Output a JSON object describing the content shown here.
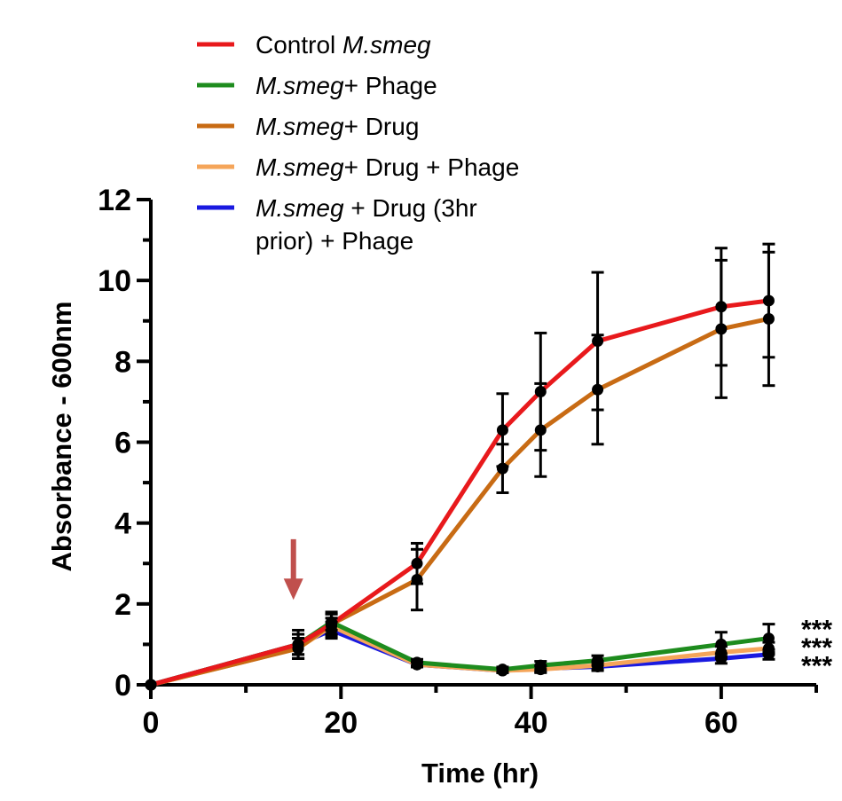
{
  "chart_data": {
    "type": "line",
    "xlabel": "Time (hr)",
    "ylabel": "Absorbance - 600nm",
    "xlim": [
      0,
      70
    ],
    "ylim": [
      0,
      12
    ],
    "x_ticks": [
      "0",
      "20",
      "40",
      "60"
    ],
    "y_ticks": [
      "0",
      "2",
      "4",
      "6",
      "8",
      "10",
      "12"
    ],
    "legend_placement": "top-left",
    "grid": false,
    "series": [
      {
        "name": "Control M.smeg",
        "legend_parts": [
          {
            "text": "Control ",
            "italic": false
          },
          {
            "text": "M.smeg",
            "italic": true
          }
        ],
        "color": "#e8191c",
        "x": [
          0,
          15.5,
          19,
          28,
          37,
          41,
          47,
          60,
          65
        ],
        "y": [
          0,
          1.0,
          1.5,
          3.0,
          6.3,
          7.25,
          8.5,
          9.35,
          9.5
        ],
        "err": [
          0,
          0.35,
          0.3,
          0.5,
          0.9,
          1.45,
          1.7,
          1.45,
          1.4
        ]
      },
      {
        "name": "M.smeg+ Phage",
        "legend_parts": [
          {
            "text": "M.smeg",
            "italic": true
          },
          {
            "text": "+ Phage",
            "italic": false
          }
        ],
        "color": "#1e8c1e",
        "x": [
          0,
          15.5,
          19,
          28,
          37,
          41,
          47,
          60,
          65
        ],
        "y": [
          0,
          1.0,
          1.55,
          0.55,
          0.38,
          0.48,
          0.6,
          1.0,
          1.15
        ],
        "err": [
          0,
          0.25,
          0.2,
          0.08,
          0.06,
          0.1,
          0.12,
          0.3,
          0.35
        ]
      },
      {
        "name": "M.smeg+ Drug",
        "legend_parts": [
          {
            "text": "M.smeg",
            "italic": true
          },
          {
            "text": "+ Drug",
            "italic": false
          }
        ],
        "color": "#c86b14",
        "x": [
          0,
          15.5,
          19,
          28,
          37,
          41,
          47,
          60,
          65
        ],
        "y": [
          0,
          0.9,
          1.5,
          2.6,
          5.35,
          6.3,
          7.3,
          8.8,
          9.05
        ],
        "err": [
          0,
          0.25,
          0.25,
          0.75,
          0.6,
          1.15,
          1.35,
          1.7,
          1.65
        ]
      },
      {
        "name": "M.smeg+ Drug + Phage",
        "legend_parts": [
          {
            "text": "M.smeg",
            "italic": true
          },
          {
            "text": "+ Drug + Phage",
            "italic": false
          }
        ],
        "color": "#f5a55a",
        "x": [
          0,
          15.5,
          19,
          28,
          37,
          41,
          47,
          60,
          65
        ],
        "y": [
          0,
          0.9,
          1.45,
          0.5,
          0.35,
          0.38,
          0.48,
          0.8,
          0.9
        ],
        "err": [
          0,
          0.25,
          0.2,
          0.06,
          0.05,
          0.08,
          0.1,
          0.15,
          0.15
        ]
      },
      {
        "name": "M.smeg + Drug (3hr prior) + Phage",
        "legend_parts": [
          {
            "text": "M.smeg",
            "italic": true
          },
          {
            "text": " + Drug (3hr",
            "italic": false
          }
        ],
        "legend_line2": "prior) + Phage",
        "color": "#1a1ae0",
        "x": [
          0,
          15.5,
          19,
          28,
          37,
          41,
          47,
          60,
          65
        ],
        "y": [
          0,
          1.0,
          1.35,
          0.5,
          0.35,
          0.4,
          0.45,
          0.65,
          0.75
        ],
        "err": [
          0,
          0.25,
          0.2,
          0.06,
          0.05,
          0.08,
          0.1,
          0.12,
          0.12
        ]
      }
    ],
    "annotations": [
      {
        "type": "arrow",
        "x": 15,
        "y_from": 3.6,
        "y_to": 2.1,
        "color": "#c0504d"
      },
      {
        "type": "text",
        "text": "***",
        "x": 65,
        "y": 1.5
      },
      {
        "type": "text",
        "text": "***",
        "x": 65,
        "y": 1.05
      },
      {
        "type": "text",
        "text": "***",
        "x": 65,
        "y": 0.6
      }
    ]
  }
}
